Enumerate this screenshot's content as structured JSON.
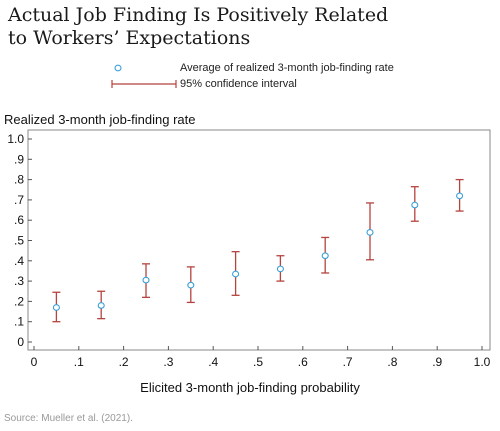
{
  "title_lines": [
    "Actual Job Finding Is Positively Related",
    "to Workers’ Expectations"
  ],
  "source": "Source: Mueller et al. (2021).",
  "legend": {
    "marker_label": "Average of realized 3-month job-finding rate",
    "interval_label": "95% confidence interval"
  },
  "colors": {
    "marker": "#3aa0d8",
    "error_bar": "#b5433f",
    "axis": "#555555",
    "frame": "#888888"
  },
  "chart_data": {
    "type": "scatter",
    "title": "Actual Job Finding Is Positively Related to Workers’ Expectations",
    "xlabel": "Elicited 3-month job-finding probability",
    "ylabel": "Realized 3-month job-finding rate",
    "xlim": [
      0,
      1.0
    ],
    "ylim": [
      0,
      1.0
    ],
    "xticks": [
      0,
      0.1,
      0.2,
      0.3,
      0.4,
      0.5,
      0.6,
      0.7,
      0.8,
      0.9,
      1.0
    ],
    "xtick_labels": [
      "0",
      ".1",
      ".2",
      ".3",
      ".4",
      ".5",
      ".6",
      ".7",
      ".8",
      ".9",
      "1.0"
    ],
    "yticks": [
      0,
      0.1,
      0.2,
      0.3,
      0.4,
      0.5,
      0.6,
      0.7,
      0.8,
      0.9,
      1.0
    ],
    "ytick_labels": [
      "0",
      ".1",
      ".2",
      ".3",
      ".4",
      ".5",
      ".6",
      ".7",
      ".8",
      ".9",
      "1.0"
    ],
    "grid": false,
    "series": [
      {
        "name": "Average of realized 3-month job-finding rate",
        "x": [
          0.05,
          0.15,
          0.25,
          0.35,
          0.45,
          0.55,
          0.65,
          0.75,
          0.85,
          0.95
        ],
        "y": [
          0.17,
          0.18,
          0.305,
          0.28,
          0.335,
          0.36,
          0.425,
          0.54,
          0.675,
          0.72
        ],
        "ci_low": [
          0.1,
          0.115,
          0.22,
          0.195,
          0.23,
          0.3,
          0.34,
          0.405,
          0.595,
          0.645
        ],
        "ci_high": [
          0.245,
          0.25,
          0.385,
          0.37,
          0.445,
          0.425,
          0.515,
          0.685,
          0.765,
          0.8
        ]
      }
    ],
    "legend_position": "top"
  }
}
